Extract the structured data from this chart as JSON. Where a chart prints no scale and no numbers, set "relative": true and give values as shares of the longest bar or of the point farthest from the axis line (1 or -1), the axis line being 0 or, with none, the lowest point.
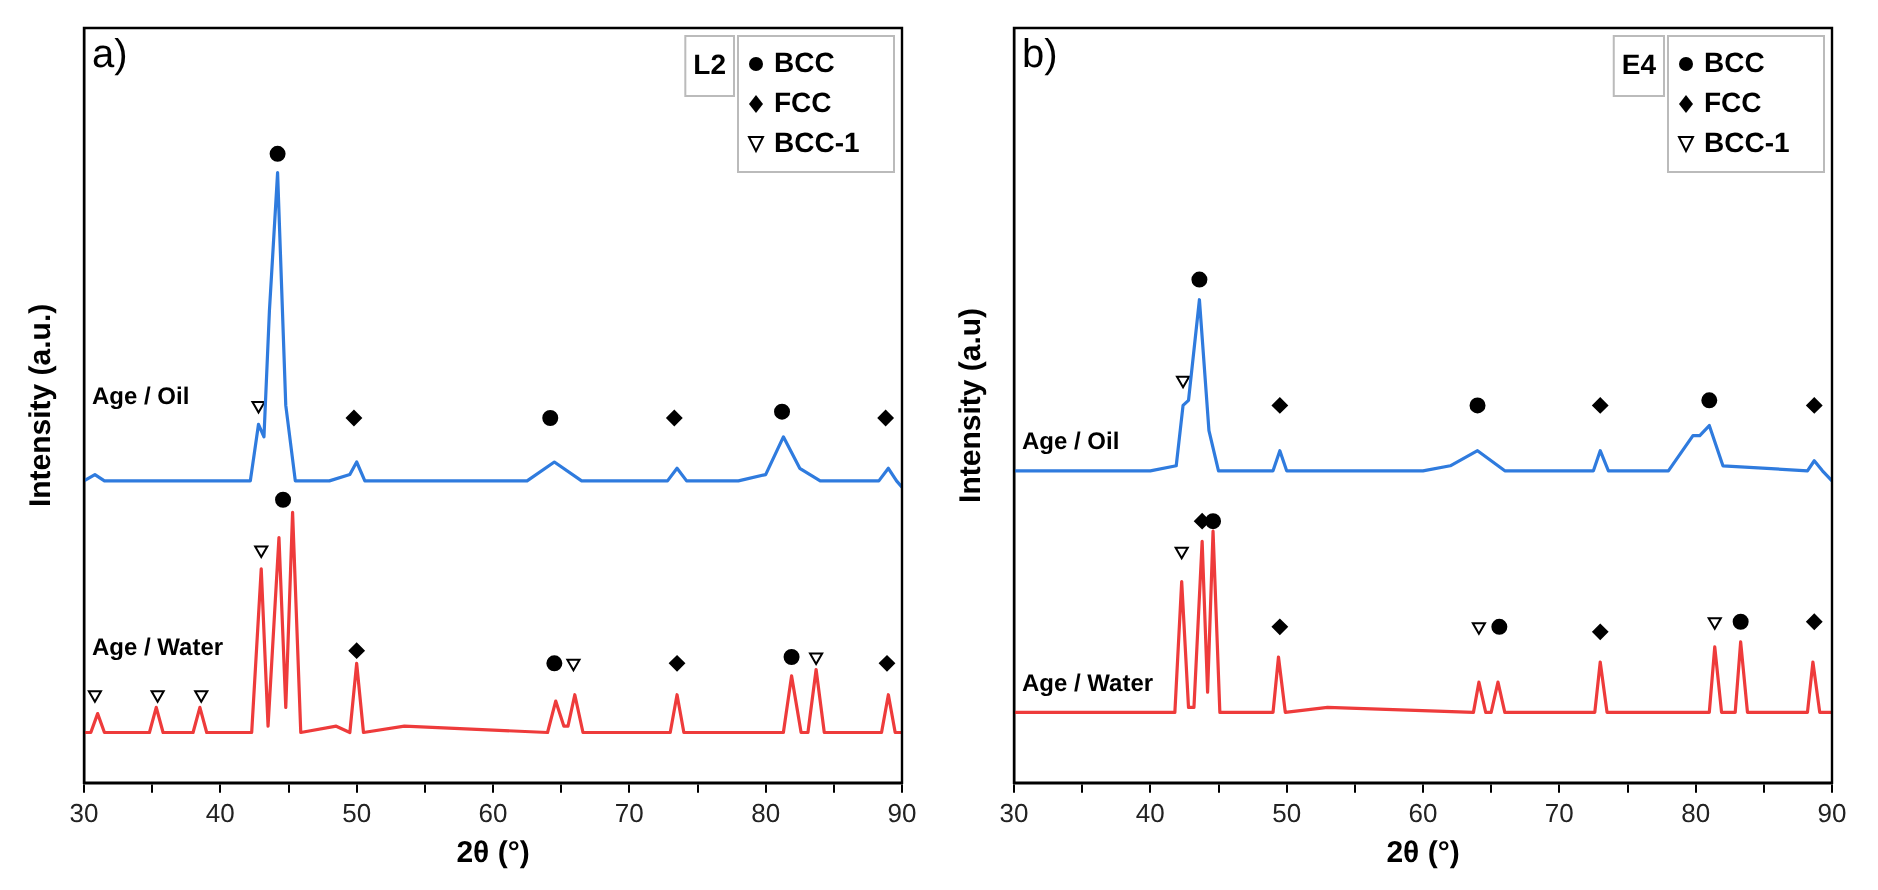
{
  "chart_data": [
    {
      "type": "line",
      "relative": true,
      "xlabel": "2θ (°)",
      "ylabel": "Intensity (a.u.)",
      "legend_title": "L2",
      "legend": "top right",
      "annotations": [
        "a)"
      ],
      "xlim": [
        30,
        90
      ],
      "xticks": [
        30,
        {
          "value": 35,
          "label": null
        },
        40,
        {
          "value": 45,
          "label": null
        },
        50,
        {
          "value": 55,
          "label": null
        },
        60,
        {
          "value": 65,
          "label": null
        },
        70,
        {
          "value": 75,
          "label": null
        },
        80,
        {
          "value": 85,
          "label": null
        },
        90
      ],
      "series": [
        {
          "name": "Age / Oil",
          "color": "#2f7bde",
          "x": [
            30,
            30.8,
            31.5,
            35,
            40,
            42.2,
            42.8,
            43.2,
            43.6,
            44.2,
            44.8,
            45.5,
            48,
            49.5,
            50,
            50.6,
            55,
            62.5,
            64.5,
            66.5,
            70,
            72.8,
            73.5,
            74.2,
            78,
            80,
            81.3,
            82.5,
            84,
            88.3,
            89,
            89.6,
            90
          ],
          "values": [
            0.48,
            0.49,
            0.48,
            0.48,
            0.48,
            0.48,
            0.57,
            0.55,
            0.75,
            0.97,
            0.6,
            0.48,
            0.48,
            0.49,
            0.51,
            0.48,
            0.48,
            0.48,
            0.51,
            0.48,
            0.48,
            0.48,
            0.5,
            0.48,
            0.48,
            0.49,
            0.55,
            0.5,
            0.48,
            0.48,
            0.5,
            0.48,
            0.47
          ]
        },
        {
          "name": "Age / Water",
          "color": "#ee3b3b",
          "x": [
            30,
            30.5,
            31,
            31.5,
            34.8,
            35.3,
            35.8,
            38,
            38.5,
            39,
            42.3,
            43,
            43.5,
            44.3,
            44.8,
            45.3,
            45.9,
            48.5,
            49.5,
            50,
            50.5,
            53.5,
            64,
            64.6,
            65.2,
            65.5,
            66,
            66.6,
            73,
            73.5,
            74,
            81.3,
            81.9,
            82.6,
            83.1,
            83.7,
            84.3,
            88.5,
            89,
            89.5,
            90
          ],
          "values": [
            0.08,
            0.08,
            0.11,
            0.08,
            0.08,
            0.12,
            0.08,
            0.08,
            0.12,
            0.08,
            0.08,
            0.34,
            0.09,
            0.39,
            0.12,
            0.43,
            0.08,
            0.09,
            0.08,
            0.19,
            0.08,
            0.09,
            0.08,
            0.13,
            0.09,
            0.09,
            0.14,
            0.08,
            0.08,
            0.14,
            0.08,
            0.08,
            0.17,
            0.08,
            0.08,
            0.18,
            0.08,
            0.08,
            0.14,
            0.08,
            0.08
          ]
        },
        {
          "name": "BCC",
          "type": "scatter",
          "marker": "circle",
          "color": "#000000",
          "x": [
            44.2,
            64.2,
            81.2,
            44.6,
            64.5,
            81.9
          ],
          "values": [
            1.0,
            0.58,
            0.59,
            0.45,
            0.19,
            0.2
          ]
        },
        {
          "name": "FCC",
          "type": "scatter",
          "marker": "diamond",
          "color": "#000000",
          "x": [
            49.8,
            73.3,
            88.8,
            50,
            73.5,
            88.9
          ],
          "values": [
            0.58,
            0.58,
            0.58,
            0.21,
            0.19,
            0.19
          ]
        },
        {
          "name": "BCC-1",
          "type": "scatter",
          "marker": "triangle",
          "color": "#000000",
          "x": [
            42.8,
            43,
            30.8,
            35.4,
            38.6,
            65.9,
            83.7
          ],
          "values": [
            0.6,
            0.37,
            0.14,
            0.14,
            0.14,
            0.19,
            0.2
          ]
        }
      ]
    },
    {
      "type": "line",
      "relative": true,
      "xlabel": "2θ (°)",
      "ylabel": "Intensity (a.u)",
      "legend_title": "E4",
      "legend": "top right",
      "annotations": [
        "b)"
      ],
      "xlim": [
        30,
        90
      ],
      "xticks": [
        30,
        {
          "value": 35,
          "label": null
        },
        40,
        {
          "value": 45,
          "label": null
        },
        50,
        {
          "value": 55,
          "label": null
        },
        60,
        {
          "value": 65,
          "label": null
        },
        70,
        {
          "value": 75,
          "label": null
        },
        80,
        {
          "value": 85,
          "label": null
        },
        90
      ],
      "series": [
        {
          "name": "Age / Oil",
          "color": "#2f7bde",
          "x": [
            30,
            40,
            41.9,
            42.4,
            42.8,
            43.6,
            44.3,
            45,
            49,
            49.5,
            50,
            60,
            62,
            64,
            66,
            72.5,
            73,
            73.6,
            78,
            79.8,
            80.3,
            81,
            82,
            88.2,
            88.7,
            89.3,
            90
          ],
          "values": [
            0.62,
            0.62,
            0.63,
            0.75,
            0.76,
            0.96,
            0.7,
            0.62,
            0.62,
            0.66,
            0.62,
            0.62,
            0.63,
            0.66,
            0.62,
            0.62,
            0.66,
            0.62,
            0.62,
            0.69,
            0.69,
            0.71,
            0.63,
            0.62,
            0.64,
            0.62,
            0.6
          ]
        },
        {
          "name": "Age / Water",
          "color": "#ee3b3b",
          "x": [
            30,
            41.8,
            42.3,
            42.8,
            43.2,
            43.8,
            44.2,
            44.6,
            45.1,
            49,
            49.4,
            49.9,
            53,
            63.7,
            64.1,
            64.6,
            65,
            65.5,
            66,
            72.6,
            73,
            73.5,
            81,
            81.4,
            81.9,
            82.9,
            83.3,
            83.8,
            88.2,
            88.6,
            89.1,
            90
          ],
          "values": [
            0.14,
            0.14,
            0.4,
            0.15,
            0.15,
            0.48,
            0.18,
            0.5,
            0.14,
            0.14,
            0.25,
            0.14,
            0.15,
            0.14,
            0.2,
            0.14,
            0.14,
            0.2,
            0.14,
            0.14,
            0.24,
            0.14,
            0.14,
            0.27,
            0.14,
            0.14,
            0.28,
            0.14,
            0.14,
            0.24,
            0.14,
            0.14
          ]
        },
        {
          "name": "BCC",
          "type": "scatter",
          "marker": "circle",
          "color": "#000000",
          "x": [
            43.6,
            64,
            81,
            44.6,
            65.6,
            83.3
          ],
          "values": [
            1.0,
            0.75,
            0.76,
            0.52,
            0.31,
            0.32
          ]
        },
        {
          "name": "FCC",
          "type": "scatter",
          "marker": "diamond",
          "color": "#000000",
          "x": [
            49.5,
            73,
            88.7,
            43.8,
            49.5,
            73,
            88.7
          ],
          "values": [
            0.75,
            0.75,
            0.75,
            0.52,
            0.31,
            0.3,
            0.32
          ]
        },
        {
          "name": "BCC-1",
          "type": "scatter",
          "marker": "triangle",
          "color": "#000000",
          "x": [
            42.4,
            42.3,
            64.1,
            81.4
          ],
          "values": [
            0.8,
            0.46,
            0.31,
            0.32
          ]
        }
      ]
    }
  ]
}
